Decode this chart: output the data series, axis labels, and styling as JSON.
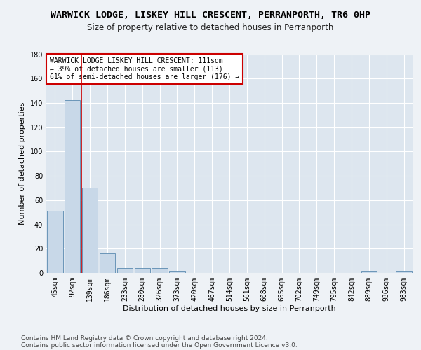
{
  "title": "WARWICK LODGE, LISKEY HILL CRESCENT, PERRANPORTH, TR6 0HP",
  "subtitle": "Size of property relative to detached houses in Perranporth",
  "xlabel": "Distribution of detached houses by size in Perranporth",
  "ylabel": "Number of detached properties",
  "categories": [
    "45sqm",
    "92sqm",
    "139sqm",
    "186sqm",
    "233sqm",
    "280sqm",
    "326sqm",
    "373sqm",
    "420sqm",
    "467sqm",
    "514sqm",
    "561sqm",
    "608sqm",
    "655sqm",
    "702sqm",
    "749sqm",
    "795sqm",
    "842sqm",
    "889sqm",
    "936sqm",
    "983sqm"
  ],
  "values": [
    51,
    142,
    70,
    16,
    4,
    4,
    4,
    2,
    0,
    0,
    0,
    0,
    0,
    0,
    0,
    0,
    0,
    0,
    2,
    0,
    2
  ],
  "bar_color": "#c8d8e8",
  "bar_edge_color": "#5a8ab0",
  "annotation_text": "WARWICK LODGE LISKEY HILL CRESCENT: 111sqm\n← 39% of detached houses are smaller (113)\n61% of semi-detached houses are larger (176) →",
  "annotation_box_edge": "#cc0000",
  "vline_color": "#cc0000",
  "vline_pos": 1.5,
  "ylim": [
    0,
    180
  ],
  "yticks": [
    0,
    20,
    40,
    60,
    80,
    100,
    120,
    140,
    160,
    180
  ],
  "footer_line1": "Contains HM Land Registry data © Crown copyright and database right 2024.",
  "footer_line2": "Contains public sector information licensed under the Open Government Licence v3.0.",
  "bg_color": "#eef2f6",
  "plot_bg_color": "#dde6ef",
  "grid_color": "#ffffff",
  "title_fontsize": 9.5,
  "subtitle_fontsize": 8.5,
  "axis_label_fontsize": 8,
  "tick_fontsize": 7,
  "annotation_fontsize": 7,
  "footer_fontsize": 6.5
}
